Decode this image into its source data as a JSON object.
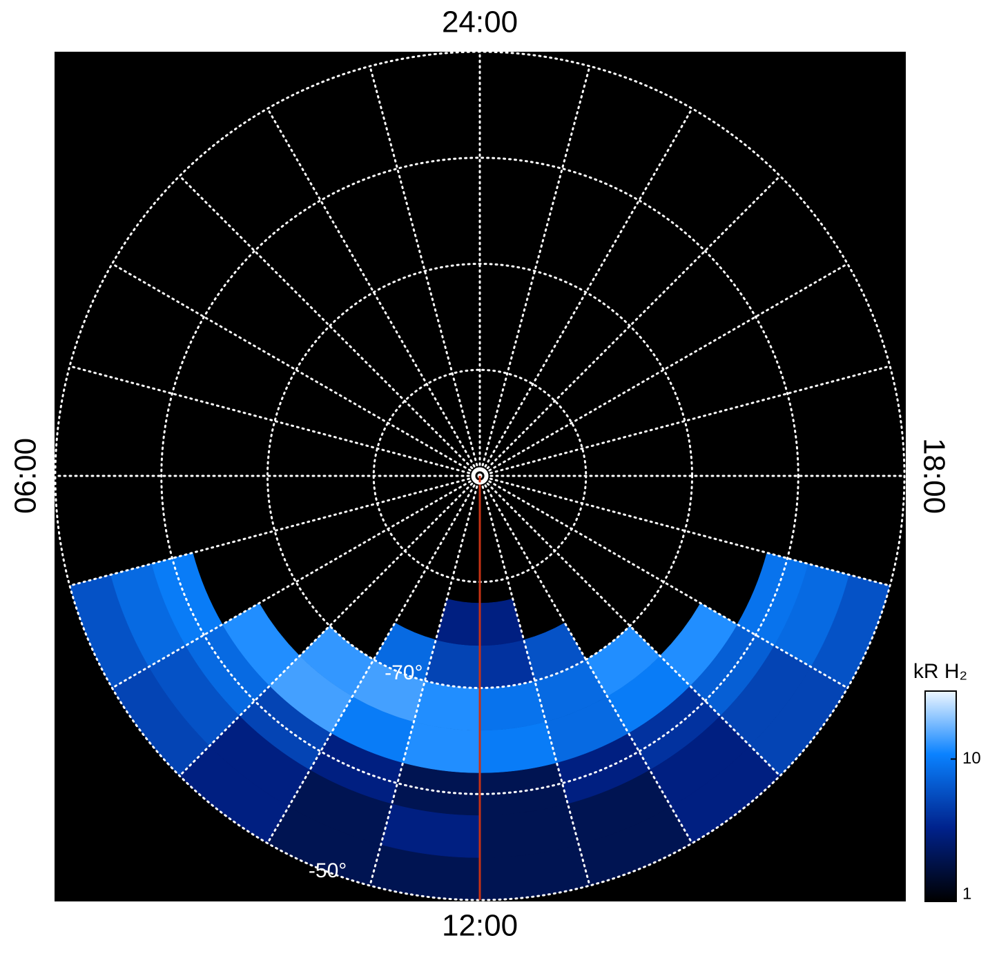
{
  "chart_data": {
    "type": "polar-image",
    "theta_ticks": [
      {
        "value": 0,
        "label": "24:00"
      },
      {
        "value": 6,
        "label": "06:00"
      },
      {
        "value": 12,
        "label": "12:00"
      },
      {
        "value": 18,
        "label": "18:00"
      }
    ],
    "theta_grid": [
      0,
      1,
      2,
      3,
      4,
      5,
      6,
      7,
      8,
      9,
      10,
      11,
      12,
      13,
      14,
      15,
      16,
      17,
      18,
      19,
      20,
      21,
      22,
      23
    ],
    "rlim": [
      -90,
      -50
    ],
    "rgrid": [
      -80,
      -70,
      -60,
      -50
    ],
    "rtick_labels": [
      {
        "value": -70,
        "label": "-70°"
      },
      {
        "value": -50,
        "label": "-50°"
      }
    ],
    "mlt_bins": [
      7,
      8,
      9,
      10,
      11,
      12,
      13,
      14,
      15,
      16,
      17
    ],
    "lat_bins": [
      -50,
      -54,
      -58,
      -62,
      -66,
      -70,
      -74,
      -78
    ],
    "values": [
      [
        6,
        5,
        3,
        2,
        2,
        2,
        2,
        3,
        5,
        6
      ],
      [
        8,
        6,
        3,
        2,
        3,
        2,
        2,
        3,
        5,
        8
      ],
      [
        10,
        8,
        5,
        3,
        2,
        2,
        3,
        4,
        7,
        9
      ],
      [
        null,
        12,
        14,
        10,
        12,
        10,
        8,
        10,
        12,
        null
      ],
      [
        null,
        null,
        13,
        14,
        12,
        9,
        8,
        12,
        null,
        null
      ],
      [
        null,
        null,
        null,
        8,
        5,
        4,
        6,
        null,
        null,
        null
      ],
      [
        null,
        null,
        null,
        null,
        3,
        3,
        null,
        null,
        null,
        null
      ]
    ],
    "meridian": {
      "value": 12,
      "color": "#c83214"
    },
    "colorbar": {
      "title": "kR H₂",
      "log": true,
      "clim": [
        1,
        30
      ],
      "ticks": [
        1,
        10
      ]
    }
  }
}
